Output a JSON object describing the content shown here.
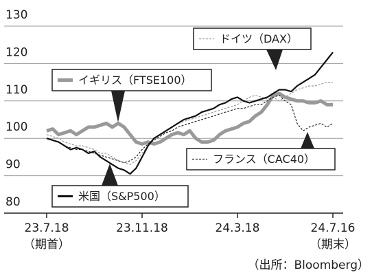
{
  "chart_data": {
    "type": "line",
    "categories": [
      "23.7.18",
      null,
      null,
      null,
      null,
      null,
      null,
      null,
      null,
      null,
      null,
      null,
      null,
      null,
      null,
      null,
      "23.11.18",
      null,
      null,
      null,
      null,
      null,
      null,
      null,
      null,
      null,
      null,
      null,
      null,
      null,
      null,
      null,
      "24.3.18",
      null,
      null,
      null,
      null,
      null,
      null,
      null,
      null,
      null,
      null,
      null,
      null,
      null,
      null,
      null,
      "24.7.16"
    ],
    "start_note": "（期首）",
    "end_note": "（期末）",
    "source": "（出所：Bloomberg）",
    "ylim": [
      80,
      130
    ],
    "yticks": [
      80,
      90,
      100,
      110,
      120,
      130
    ],
    "grid": true,
    "series": [
      {
        "name": "ドイツ（DAX）",
        "color": "#999999",
        "style": "dashed-thin",
        "values": [
          101,
          100.5,
          100,
          99,
          98.5,
          98,
          98,
          97.5,
          97,
          96,
          96,
          95,
          94,
          93.5,
          93,
          94,
          96,
          98,
          100,
          101,
          102,
          103,
          104,
          104.5,
          105,
          105.5,
          106,
          106.5,
          107,
          107.5,
          108,
          108.5,
          109,
          110,
          111,
          111.5,
          111,
          110.5,
          111,
          110,
          111,
          112,
          113,
          113.5,
          114,
          114,
          114.5,
          115,
          115
        ]
      },
      {
        "name": "イギリス（FTSE100）",
        "color": "#999999",
        "style": "thick",
        "values": [
          102,
          102.5,
          101,
          101.5,
          102,
          101,
          102,
          103,
          103,
          103.5,
          104,
          103,
          104,
          103,
          101,
          99,
          98.5,
          99,
          98.5,
          99,
          100,
          101,
          101.5,
          101,
          102,
          100,
          99,
          99,
          99.5,
          101,
          102,
          102.5,
          103,
          104,
          104.5,
          106,
          107,
          109,
          111.5,
          112,
          111,
          110.5,
          110,
          110,
          109.5,
          109.5,
          110,
          109,
          109
        ]
      },
      {
        "name": "フランス（CAC40）",
        "color": "#222222",
        "style": "dashed-thin",
        "values": [
          100,
          99.5,
          99,
          98,
          97.5,
          97,
          97,
          96.5,
          96,
          95.5,
          95,
          94.5,
          94,
          93.5,
          94,
          95,
          97,
          98.5,
          99.5,
          100.5,
          101.5,
          102,
          103,
          103.5,
          104,
          104.5,
          105,
          105.5,
          106,
          106.5,
          107,
          107.5,
          108,
          108,
          108.5,
          109,
          109,
          110,
          111,
          111.5,
          110,
          109,
          104,
          102,
          103,
          103.5,
          104,
          103,
          104
        ]
      },
      {
        "name": "米国（S&P500）",
        "color": "#111111",
        "style": "solid",
        "values": [
          100,
          99.5,
          99,
          98,
          97,
          97.5,
          97,
          96,
          96.5,
          95,
          94,
          93,
          92,
          91.5,
          90.5,
          92,
          95,
          98,
          100,
          101,
          102,
          103,
          104,
          105,
          105.5,
          106,
          107,
          107.5,
          108,
          109,
          109.5,
          110.5,
          111,
          110,
          109.5,
          110,
          110.5,
          111,
          112,
          113,
          113,
          112.5,
          114,
          115,
          116,
          117,
          119,
          121,
          123
        ]
      }
    ]
  }
}
